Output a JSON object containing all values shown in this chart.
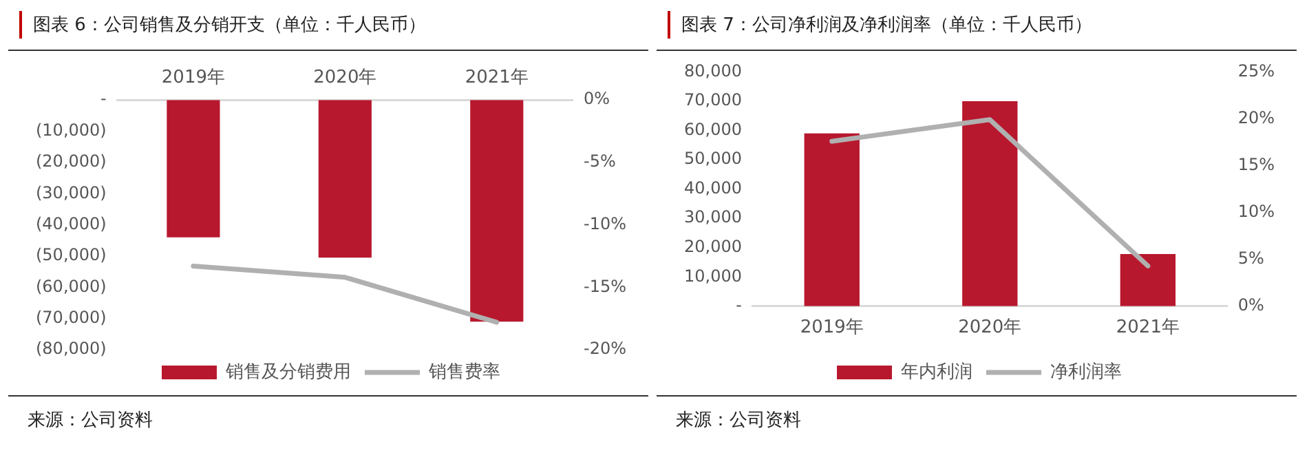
{
  "chart_data": [
    {
      "type": "bar",
      "title": "图表 6：公司销售及分销开支（单位：千人民币）",
      "categories": [
        "2019年",
        "2020年",
        "2021年"
      ],
      "series": [
        {
          "name": "销售及分销费用",
          "color": "#b8182e",
          "values": [
            -44000,
            -50500,
            -71000
          ]
        },
        {
          "name": "销售费率",
          "type": "line",
          "axis": "y2",
          "color": "#b0b0b0",
          "values": [
            -13.3,
            -14.2,
            -17.8
          ]
        }
      ],
      "ylim": [
        -80000,
        0
      ],
      "yticks": [
        {
          "value": -80000,
          "label": "(80,000)"
        },
        {
          "value": -70000,
          "label": "(70,000)"
        },
        {
          "value": -60000,
          "label": "(60,000)"
        },
        {
          "value": -50000,
          "label": "(50,000)"
        },
        {
          "value": -40000,
          "label": "(40,000)"
        },
        {
          "value": -30000,
          "label": "(30,000)"
        },
        {
          "value": -20000,
          "label": "(20,000)"
        },
        {
          "value": -10000,
          "label": "(10,000)"
        },
        {
          "value": 0,
          "label": "-"
        }
      ],
      "y2lim": [
        -20,
        0
      ],
      "y2ticks": [
        {
          "value": -20,
          "label": "-20%"
        },
        {
          "value": -15,
          "label": "-15%"
        },
        {
          "value": -10,
          "label": "-10%"
        },
        {
          "value": -5,
          "label": "-5%"
        },
        {
          "value": 0,
          "label": "0%"
        }
      ],
      "legend": "bottom",
      "grid": false,
      "annotations": [
        "来源：公司资料"
      ]
    },
    {
      "type": "bar",
      "title": "图表 7：公司净利润及净利润率（单位：千人民币）",
      "categories": [
        "2019年",
        "2020年",
        "2021年"
      ],
      "series": [
        {
          "name": "年内利润",
          "color": "#b8182e",
          "values": [
            59000,
            70000,
            17800
          ]
        },
        {
          "name": "净利润率",
          "type": "line",
          "axis": "y2",
          "color": "#b0b0b0",
          "values": [
            17.6,
            19.9,
            4.3
          ]
        }
      ],
      "ylim": [
        0,
        80000
      ],
      "yticks": [
        {
          "value": 0,
          "label": "-"
        },
        {
          "value": 10000,
          "label": "10,000"
        },
        {
          "value": 20000,
          "label": "20,000"
        },
        {
          "value": 30000,
          "label": "30,000"
        },
        {
          "value": 40000,
          "label": "40,000"
        },
        {
          "value": 50000,
          "label": "50,000"
        },
        {
          "value": 60000,
          "label": "60,000"
        },
        {
          "value": 70000,
          "label": "70,000"
        },
        {
          "value": 80000,
          "label": "80,000"
        }
      ],
      "y2lim": [
        0,
        25
      ],
      "y2ticks": [
        {
          "value": 0,
          "label": "0%"
        },
        {
          "value": 5,
          "label": "5%"
        },
        {
          "value": 10,
          "label": "10%"
        },
        {
          "value": 15,
          "label": "15%"
        },
        {
          "value": 20,
          "label": "20%"
        },
        {
          "value": 25,
          "label": "25%"
        }
      ],
      "legend": "bottom",
      "grid": false,
      "annotations": [
        "来源：公司资料"
      ]
    }
  ]
}
